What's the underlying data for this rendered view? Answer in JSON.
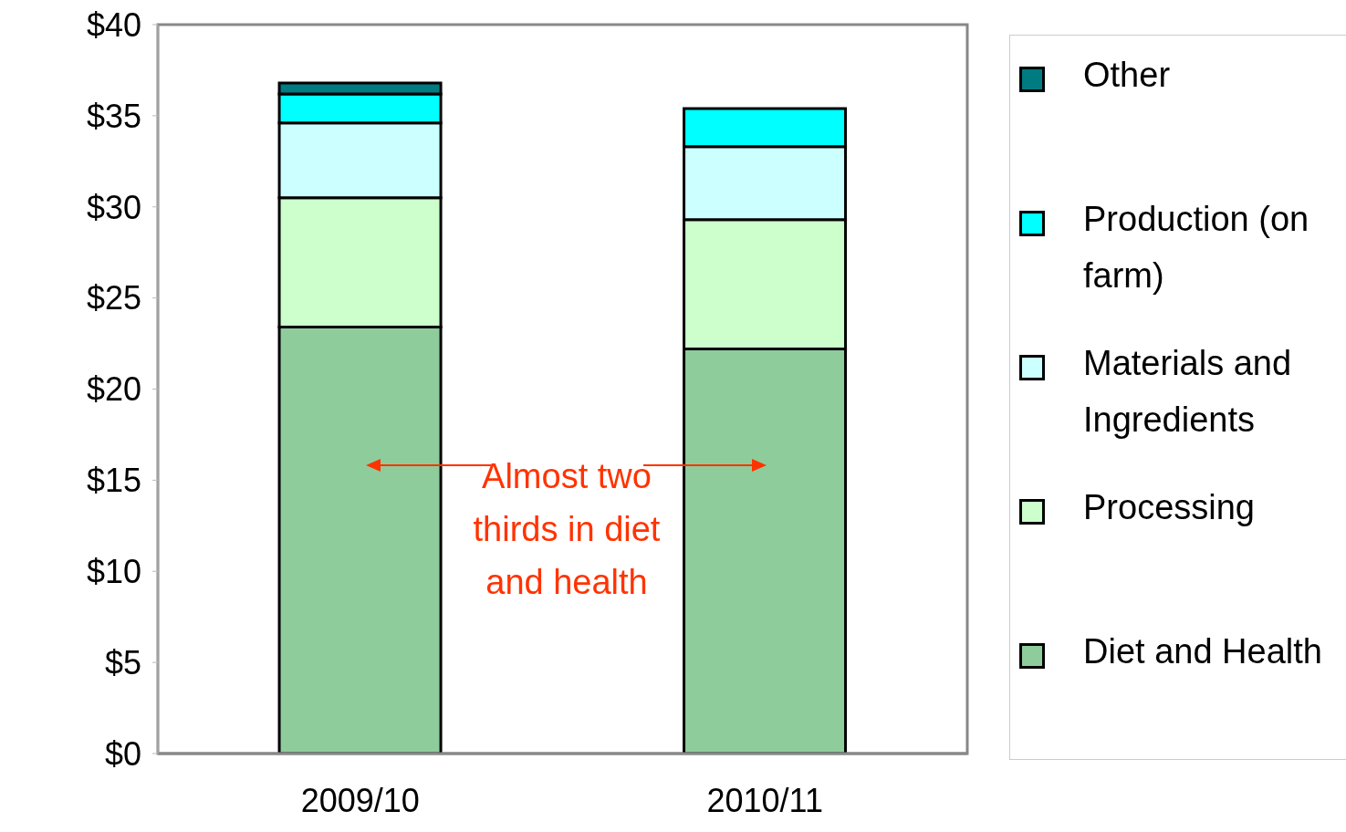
{
  "chart_data": {
    "type": "bar",
    "stacked": true,
    "categories": [
      "2009/10",
      "2010/11"
    ],
    "series": [
      {
        "name": "Diet and Health",
        "color": "#8fcc9c",
        "values": [
          23.4,
          22.2
        ]
      },
      {
        "name": "Processing",
        "color": "#ccffcc",
        "values": [
          7.1,
          7.1
        ]
      },
      {
        "name": "Materials and Ingredients",
        "color": "#ccffff",
        "values": [
          4.1,
          4.0
        ]
      },
      {
        "name": "Production (on farm)",
        "color": "#00ffff",
        "values": [
          1.6,
          2.1
        ]
      },
      {
        "name": "Other",
        "color": "#007b82",
        "values": [
          0.6,
          0
        ]
      }
    ],
    "ylim": [
      0,
      40
    ],
    "yticks": [
      {
        "value": 0,
        "label": "$0"
      },
      {
        "value": 5,
        "label": "$5"
      },
      {
        "value": 10,
        "label": "$10"
      },
      {
        "value": 15,
        "label": "$15"
      },
      {
        "value": 20,
        "label": "$20"
      },
      {
        "value": 25,
        "label": "$25"
      },
      {
        "value": 30,
        "label": "$30"
      },
      {
        "value": 35,
        "label": "$35"
      },
      {
        "value": 40,
        "label": "$40"
      }
    ],
    "grid": false,
    "legend": "right",
    "annotations": [
      "Almost two thirds in diet and health"
    ]
  }
}
